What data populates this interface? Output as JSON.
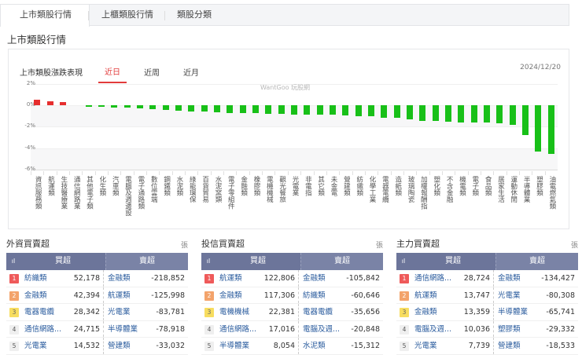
{
  "tabs": [
    {
      "label": "上市類股行情",
      "active": true
    },
    {
      "label": "上櫃類股行情",
      "active": false
    },
    {
      "label": "類股分類",
      "active": false
    }
  ],
  "section_title": "上市類股行情",
  "chart_panel": {
    "title": "上市類股漲跌表現",
    "periods": [
      {
        "label": "近日",
        "active": true
      },
      {
        "label": "近周",
        "active": false
      },
      {
        "label": "近月",
        "active": false
      }
    ],
    "date": "2024/12/20",
    "watermark": "WantGoo 玩股網"
  },
  "colors": {
    "up": "#e62e2e",
    "down": "#18c018",
    "accent": "#e23b3b",
    "table_header": "#6c759a"
  },
  "chart_data": {
    "type": "bar",
    "title": "上市類股漲跌表現",
    "xlabel": "",
    "ylabel": "",
    "ylim": [
      -6,
      2
    ],
    "yticks": [
      "2%",
      "0%",
      "-2%",
      "-4%",
      "-6%"
    ],
    "grid": true,
    "categories": [
      "資訊服務類",
      "航運類",
      "生技醫療業",
      "通信網路業",
      "其他電子類",
      "化生類",
      "汽車類",
      "電腦及週邊設",
      "電子通路類",
      "數位雲端",
      "鋼鐵類",
      "水泥類",
      "綠能環保",
      "百貨貿易",
      "水泥窯類",
      "電子零組件",
      "金融類",
      "橡膠類",
      "電機機械",
      "觀光餐旅",
      "光電業",
      "非電指",
      "其它類",
      "未金電",
      "營建類",
      "紡織類",
      "化學工業",
      "電器電纜",
      "造紙類",
      "玻璃陶瓷",
      "加權報酬指",
      "塑化類",
      "不含金融",
      "機電類",
      "電子類",
      "食品類",
      "居家生活",
      "運動休閒",
      "半導體業",
      "塑膠類",
      "油電燃氣類"
    ],
    "values": [
      0.5,
      0.35,
      0.3,
      0.0,
      -0.1,
      -0.15,
      -0.2,
      -0.25,
      -0.3,
      -0.35,
      -0.45,
      -0.5,
      -0.55,
      -0.6,
      -0.65,
      -0.7,
      -0.75,
      -0.75,
      -0.8,
      -0.8,
      -0.85,
      -0.85,
      -0.85,
      -0.9,
      -0.95,
      -1.0,
      -1.05,
      -1.15,
      -1.2,
      -1.35,
      -1.45,
      -1.45,
      -1.5,
      -1.6,
      -1.6,
      -1.6,
      -1.7,
      -1.8,
      -2.8,
      -4.3,
      -4.5
    ]
  },
  "tables": [
    {
      "title": "外資買賣超",
      "unit": "張",
      "col_buy": "買超",
      "col_sell": "賣超",
      "icon": "bar-chart-icon",
      "rows": [
        {
          "rank": "1",
          "buy_name": "紡織類",
          "buy_val": "52,178",
          "sell_name": "金融類",
          "sell_val": "-218,852"
        },
        {
          "rank": "2",
          "buy_name": "金融類",
          "buy_val": "42,394",
          "sell_name": "航運類",
          "sell_val": "-125,998"
        },
        {
          "rank": "3",
          "buy_name": "電器電纜",
          "buy_val": "28,342",
          "sell_name": "光電業",
          "sell_val": "-83,781"
        },
        {
          "rank": "4",
          "buy_name": "通信網路...",
          "buy_val": "24,715",
          "sell_name": "半導體業",
          "sell_val": "-78,918"
        },
        {
          "rank": "5",
          "buy_name": "光電業",
          "buy_val": "14,532",
          "sell_name": "營建類",
          "sell_val": "-33,032"
        }
      ]
    },
    {
      "title": "投信買賣超",
      "unit": "張",
      "col_buy": "買超",
      "col_sell": "賣超",
      "icon": "bar-chart-icon",
      "rows": [
        {
          "rank": "1",
          "buy_name": "航運類",
          "buy_val": "122,806",
          "sell_name": "金融類",
          "sell_val": "-105,842"
        },
        {
          "rank": "2",
          "buy_name": "金融類",
          "buy_val": "117,306",
          "sell_name": "紡織類",
          "sell_val": "-60,646"
        },
        {
          "rank": "3",
          "buy_name": "電機機械",
          "buy_val": "22,381",
          "sell_name": "電器電纜",
          "sell_val": "-35,656"
        },
        {
          "rank": "4",
          "buy_name": "通信網路...",
          "buy_val": "17,016",
          "sell_name": "電腦及週...",
          "sell_val": "-20,848"
        },
        {
          "rank": "5",
          "buy_name": "半導體業",
          "buy_val": "8,054",
          "sell_name": "水泥類",
          "sell_val": "-15,312"
        }
      ]
    },
    {
      "title": "主力買賣超",
      "unit": "張",
      "col_buy": "買超",
      "col_sell": "賣超",
      "icon": "bar-chart-icon",
      "rows": [
        {
          "rank": "1",
          "buy_name": "通信網路...",
          "buy_val": "28,724",
          "sell_name": "金融類",
          "sell_val": "-134,427"
        },
        {
          "rank": "2",
          "buy_name": "航運類",
          "buy_val": "13,747",
          "sell_name": "光電業",
          "sell_val": "-80,308"
        },
        {
          "rank": "3",
          "buy_name": "金融類",
          "buy_val": "13,359",
          "sell_name": "半導體業",
          "sell_val": "-65,741"
        },
        {
          "rank": "4",
          "buy_name": "電腦及週...",
          "buy_val": "10,036",
          "sell_name": "塑膠類",
          "sell_val": "-29,332"
        },
        {
          "rank": "5",
          "buy_name": "光電業",
          "buy_val": "7,739",
          "sell_name": "營建類",
          "sell_val": "-18,533"
        }
      ]
    }
  ]
}
